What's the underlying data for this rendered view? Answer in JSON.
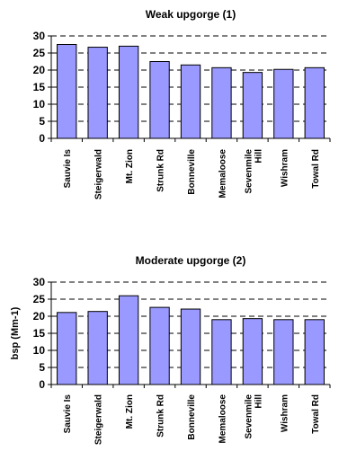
{
  "chart_data": [
    {
      "type": "bar",
      "title": "Weak upgorge (1)",
      "xlabel": "",
      "ylabel": "",
      "ylim": [
        0,
        30
      ],
      "yticks": [
        0,
        5,
        10,
        15,
        20,
        25,
        30
      ],
      "grid": true,
      "categories": [
        [
          "Sauvie Is"
        ],
        [
          "Steigerwald"
        ],
        [
          "Mt. Zion"
        ],
        [
          "Strunk Rd"
        ],
        [
          "Bonneville"
        ],
        [
          "Memaloose"
        ],
        [
          "Sevenmile",
          "Hill"
        ],
        [
          "Wishram"
        ],
        [
          "Towal Rd"
        ]
      ],
      "values": [
        27.5,
        26.7,
        27.0,
        22.5,
        21.5,
        20.7,
        19.3,
        20.2,
        20.7
      ],
      "colors": {
        "bar": "#9999ff",
        "edge": "#000000"
      }
    },
    {
      "type": "bar",
      "title": "Moderate upgorge (2)",
      "xlabel": "",
      "ylabel": "bsp (Mm-1)",
      "ylim": [
        0,
        30
      ],
      "yticks": [
        0,
        5,
        10,
        15,
        20,
        25,
        30
      ],
      "grid": true,
      "categories": [
        [
          "Sauvie Is"
        ],
        [
          "Steigerwald"
        ],
        [
          "Mt. Zion"
        ],
        [
          "Strunk Rd"
        ],
        [
          "Bonneville"
        ],
        [
          "Memaloose"
        ],
        [
          "Sevenmile",
          "Hill"
        ],
        [
          "Wishram"
        ],
        [
          "Towal Rd"
        ]
      ],
      "values": [
        21.1,
        21.4,
        26.0,
        22.6,
        22.1,
        19.0,
        19.3,
        19.0,
        19.0
      ],
      "colors": {
        "bar": "#9999ff",
        "edge": "#000000"
      }
    }
  ]
}
